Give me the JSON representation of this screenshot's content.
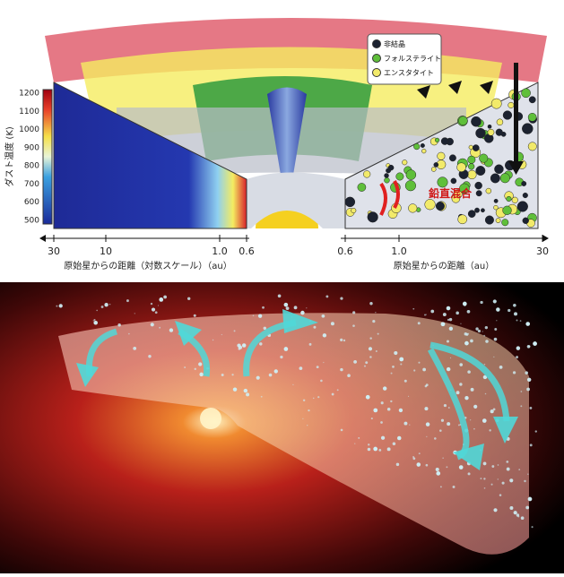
{
  "colorbar": {
    "title": "ダスト温度 (K)",
    "ticks": [
      "1200",
      "1100",
      "1000",
      "900",
      "800",
      "700",
      "600",
      "500"
    ]
  },
  "legend": [
    {
      "label": "非結晶",
      "color": "#1c2230"
    },
    {
      "label": "フォルステライト",
      "color": "#5fbf3a"
    },
    {
      "label": "エンスタタイト",
      "color": "#f2ea6a"
    }
  ],
  "annotation": "鉛直混合",
  "left_axis": {
    "ticks": [
      "30",
      "10",
      "1.0",
      "0.6"
    ],
    "label": "原始星からの距離（対数スケール）（au）"
  },
  "right_axis": {
    "ticks": [
      "0.6",
      "1.0",
      "30"
    ],
    "label": "原始星からの距離（au）"
  }
}
